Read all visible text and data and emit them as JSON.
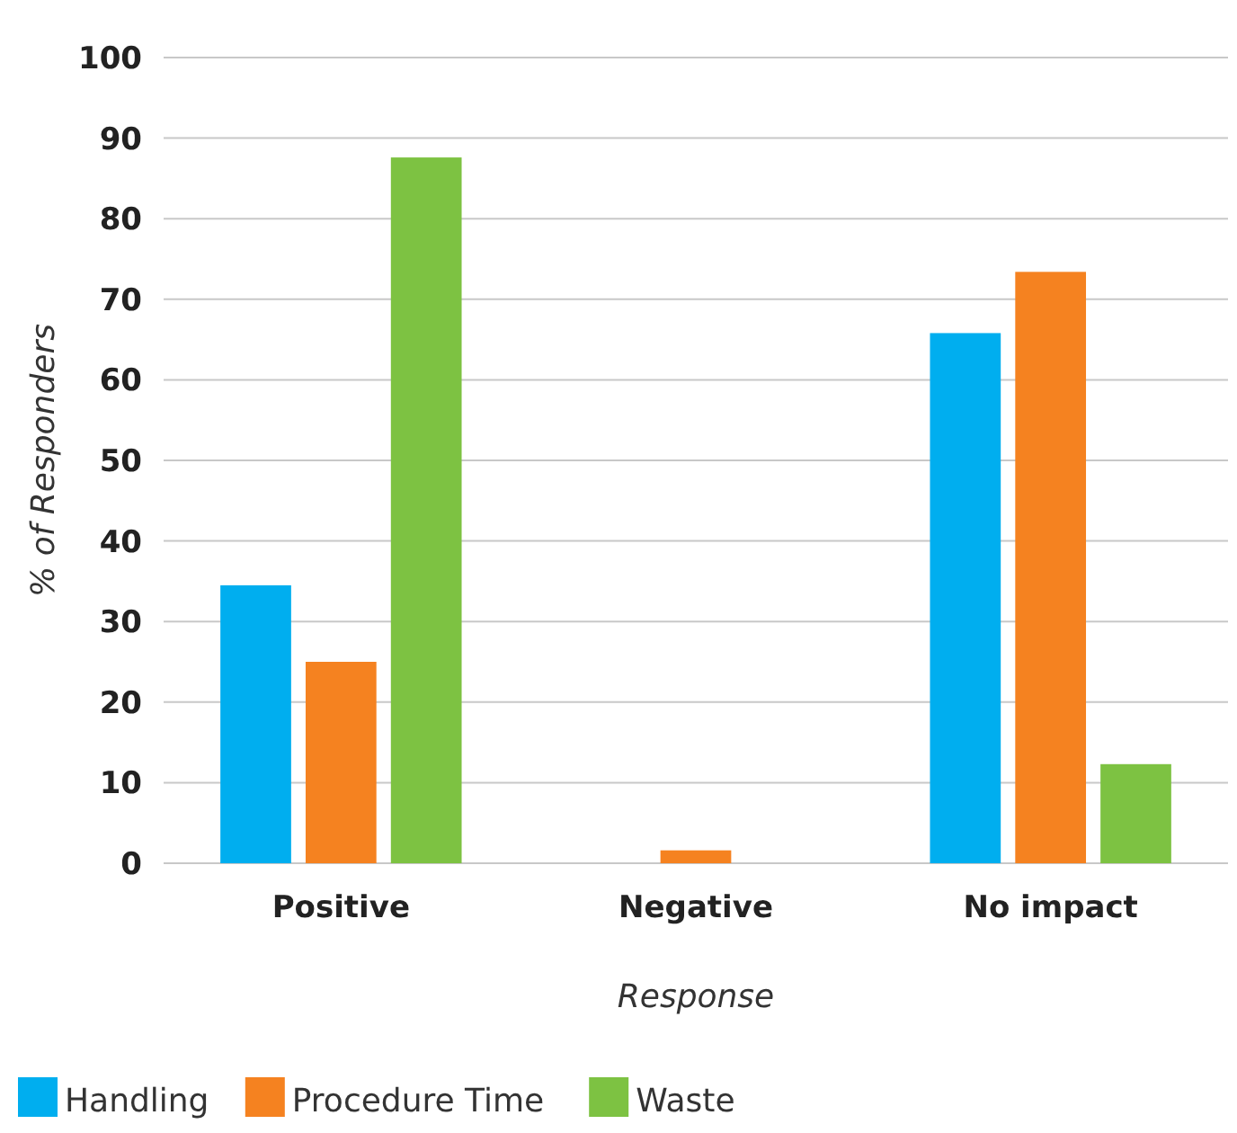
{
  "chart_data": {
    "type": "bar",
    "xlabel": "Response",
    "ylabel": "% of Responders",
    "categories": [
      "Positive",
      "Negative",
      "No impact"
    ],
    "series": [
      {
        "name": "Handling",
        "color": "#00aeef",
        "values": [
          34.5,
          0,
          65.8
        ]
      },
      {
        "name": "Procedure Time",
        "color": "#f58220",
        "values": [
          25,
          1.6,
          73.4
        ]
      },
      {
        "name": "Waste",
        "color": "#7dc242",
        "values": [
          87.6,
          0,
          12.3
        ]
      }
    ],
    "ylim": [
      0,
      100
    ],
    "yticks": [
      0,
      10,
      20,
      30,
      40,
      50,
      60,
      70,
      80,
      90,
      100
    ],
    "grid": "y",
    "legend": "bottom left"
  }
}
